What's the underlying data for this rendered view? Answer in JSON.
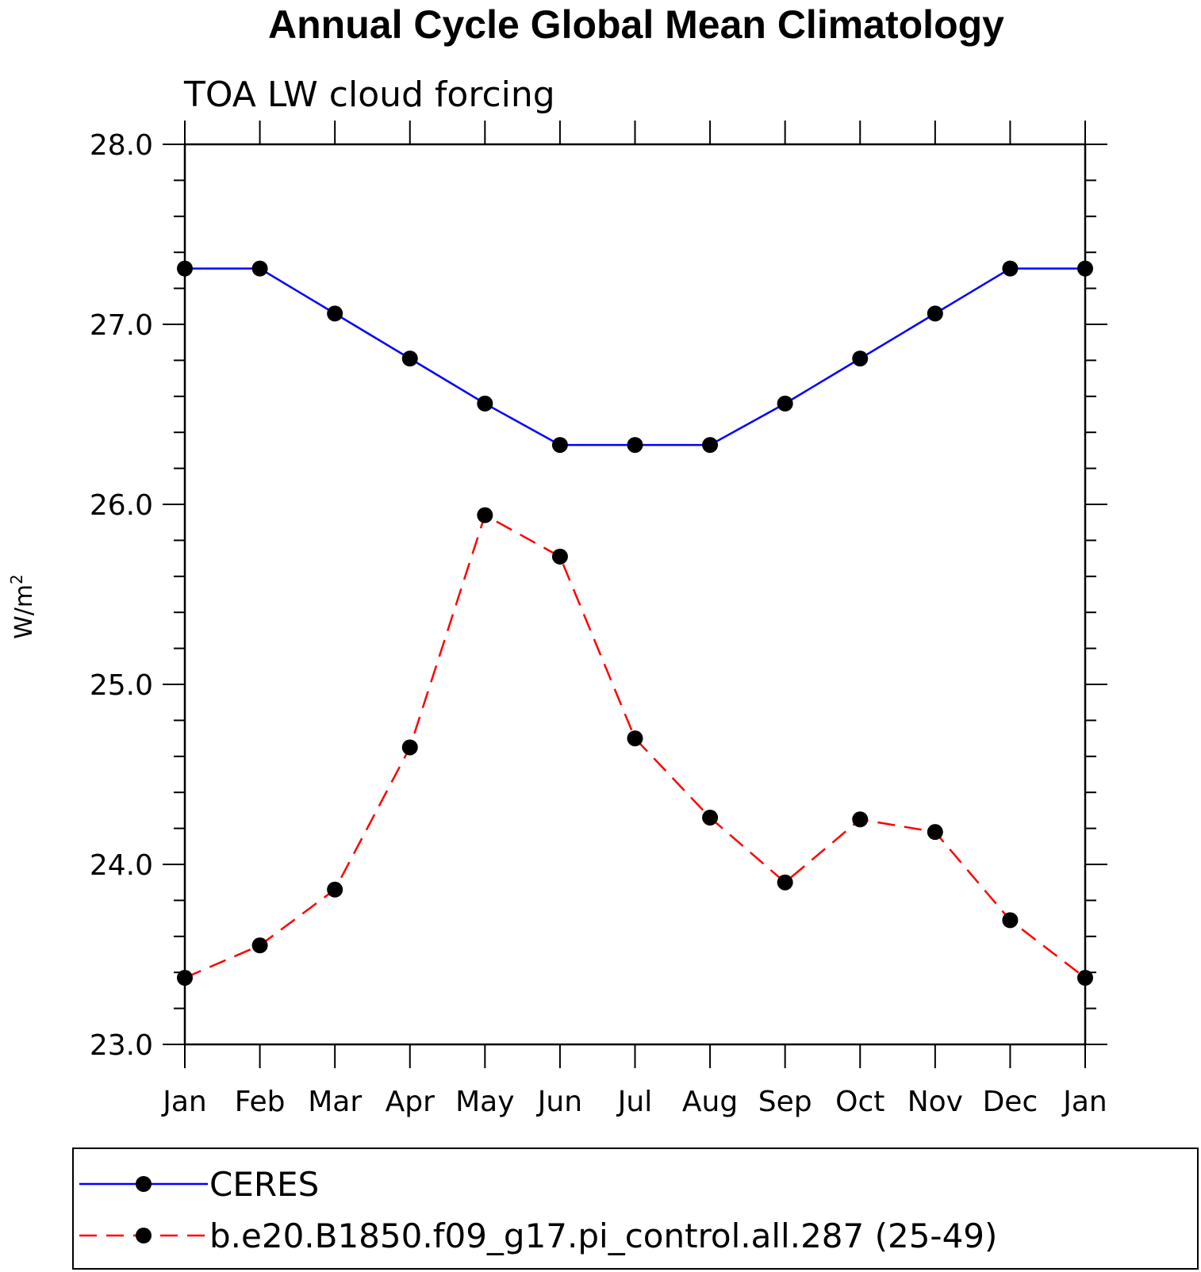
{
  "chart_data": {
    "type": "line",
    "title": "Annual Cycle Global Mean Climatology",
    "subtitle": "TOA LW cloud forcing",
    "ylabel": "W/m",
    "ylabel_sup": "2",
    "xlabel": "",
    "categories": [
      "Jan",
      "Feb",
      "Mar",
      "Apr",
      "May",
      "Jun",
      "Jul",
      "Aug",
      "Sep",
      "Oct",
      "Nov",
      "Dec",
      "Jan"
    ],
    "ylim": [
      23.0,
      28.0
    ],
    "yticks": [
      "23.0",
      "24.0",
      "25.0",
      "26.0",
      "27.0",
      "28.0"
    ],
    "grid": false,
    "legend_position": "bottom",
    "series": [
      {
        "name": "CERES",
        "color": "#0000ff",
        "dash": "solid",
        "marker": "filled-circle",
        "values": [
          27.31,
          27.31,
          27.06,
          26.81,
          26.56,
          26.33,
          26.33,
          26.33,
          26.56,
          26.81,
          27.06,
          27.31,
          27.31
        ]
      },
      {
        "name": "b.e20.B1850.f09_g17.pi_control.all.287 (25-49)",
        "color": "#ff0000",
        "dash": "dashed",
        "marker": "filled-circle",
        "values": [
          23.37,
          23.55,
          23.86,
          24.65,
          25.94,
          25.71,
          24.7,
          24.26,
          23.9,
          24.25,
          24.18,
          23.69,
          23.37
        ]
      }
    ]
  }
}
